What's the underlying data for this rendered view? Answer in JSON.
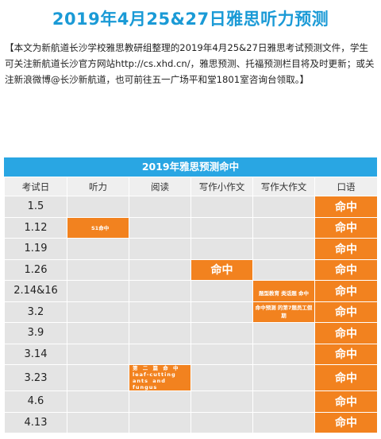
{
  "title": "2019年4月25&27日雅思听力预测",
  "intro": "【本文为新航道长沙学校雅思教研组整理的2019年4月25&27日雅思考试预测文件，学生可关注新航道长沙官方网站http://cs.xhd.cn/，雅思预测、托福预测栏目将及时更新；或关注新浪微博@长沙新航道，也可前往五一广场平和堂1801室咨询台领取。】",
  "table": {
    "banner": "2019年雅思预测命中",
    "headers": [
      "考试日",
      "听力",
      "阅读",
      "写作小作文",
      "写作大作文",
      "口语"
    ],
    "rows": [
      {
        "date": "1.5",
        "listening": "",
        "reading": "",
        "task1": "",
        "task2": "",
        "speaking": "命中"
      },
      {
        "date": "1.12",
        "listening": "S1命中",
        "reading": "",
        "task1": "",
        "task2": "",
        "speaking": "命中"
      },
      {
        "date": "1.19",
        "listening": "",
        "reading": "",
        "task1": "",
        "task2": "",
        "speaking": "命中"
      },
      {
        "date": "1.26",
        "listening": "",
        "reading": "",
        "task1": "命中",
        "task2": "",
        "speaking": "命中"
      },
      {
        "date": "2.14&16",
        "listening": "",
        "reading": "",
        "task1": "",
        "task2": "题型教育 类话题 命中",
        "speaking": "命中"
      },
      {
        "date": "3.2",
        "listening": "",
        "reading": "",
        "task1": "",
        "task2": "命中预测 的第7题员工假期",
        "speaking": "命中"
      },
      {
        "date": "3.9",
        "listening": "",
        "reading": "",
        "task1": "",
        "task2": "",
        "speaking": "命中"
      },
      {
        "date": "3.14",
        "listening": "",
        "reading": "",
        "task1": "",
        "task2": "",
        "speaking": "命中"
      },
      {
        "date": "3.23",
        "listening": "",
        "reading": "第 二 篇 命 中 leaf-cutting ants and fungus",
        "task1": "",
        "task2": "",
        "speaking": "命中"
      },
      {
        "date": "4.6",
        "listening": "",
        "reading": "",
        "task1": "",
        "task2": "",
        "speaking": "命中"
      },
      {
        "date": "4.13",
        "listening": "",
        "reading": "",
        "task1": "",
        "task2": "",
        "speaking": "命中"
      }
    ]
  },
  "colors": {
    "title": "#1a9ad6",
    "banner": "#29a6e3",
    "hit": "#f2821f",
    "cell": "#e4e4e4",
    "header_cell": "#efefef"
  }
}
